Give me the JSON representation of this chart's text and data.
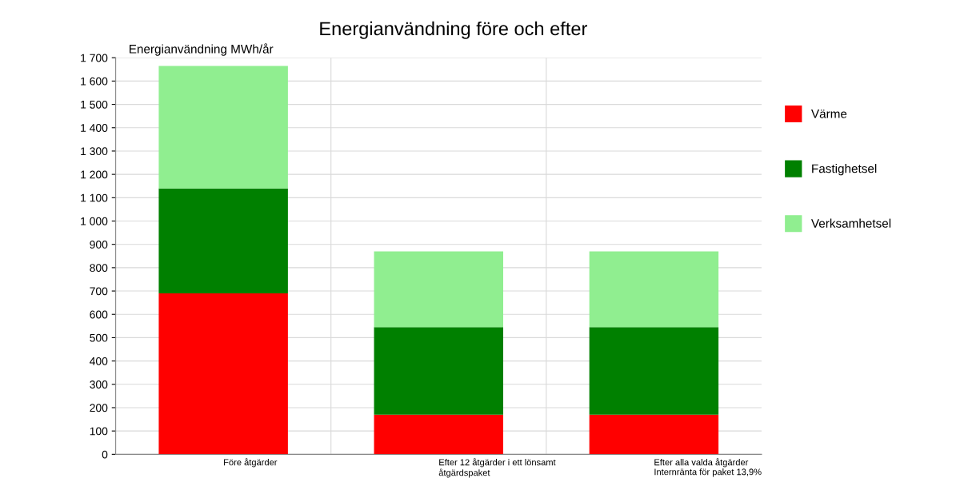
{
  "chart_data": {
    "type": "bar",
    "title": "Energianvändning före och efter",
    "ylabel": "Energianvändning MWh/år",
    "categories": [
      "Före åtgärder",
      "Efter 12 åtgärder i ett lönsamt\nåtgärdspaket",
      "Efter alla valda åtgärder\nInternränta för paket 13,9%"
    ],
    "stacked": true,
    "series": [
      {
        "name": "Värme",
        "color": "#ff0000",
        "values": [
          690,
          170,
          170
        ]
      },
      {
        "name": "Fastighetsel",
        "color": "#008000",
        "values": [
          450,
          375,
          375
        ]
      },
      {
        "name": "Verksamhetsel",
        "color": "#90ee90",
        "values": [
          525,
          325,
          325
        ]
      }
    ],
    "ylim": [
      0,
      1700
    ],
    "yticks": [
      0,
      100,
      200,
      300,
      400,
      500,
      600,
      700,
      800,
      900,
      {
        "value": 1000,
        "label": "1 000"
      },
      {
        "value": 1100,
        "label": "1 100"
      },
      {
        "value": 1200,
        "label": "1 200"
      },
      {
        "value": 1300,
        "label": "1 300"
      },
      {
        "value": 1400,
        "label": "1 400"
      },
      {
        "value": 1500,
        "label": "1 500"
      },
      {
        "value": 1600,
        "label": "1 600"
      },
      {
        "value": 1700,
        "label": "1 700"
      }
    ],
    "grid": true,
    "legend": "right"
  }
}
